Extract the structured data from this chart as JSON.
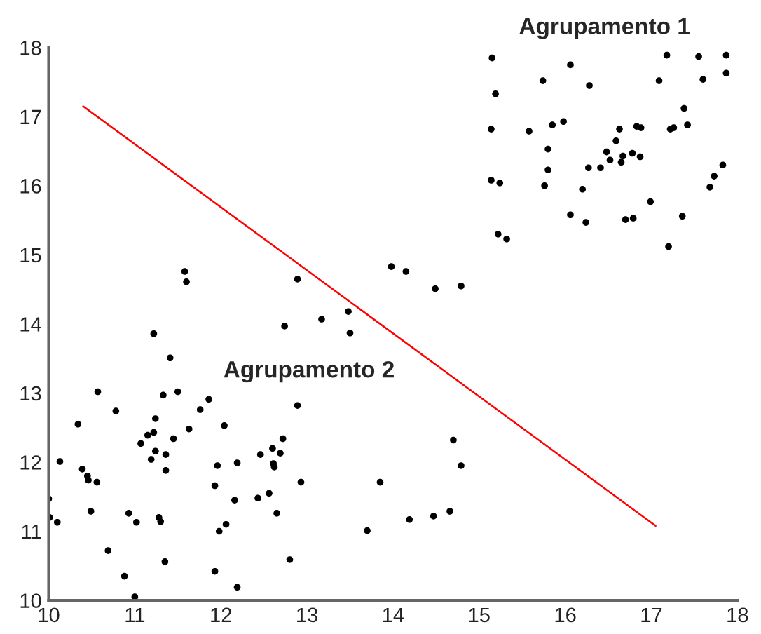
{
  "chart_data": {
    "type": "scatter",
    "xlim": [
      10,
      18
    ],
    "ylim": [
      10,
      18
    ],
    "xticks": [
      10,
      11,
      12,
      13,
      14,
      15,
      16,
      17,
      18
    ],
    "yticks": [
      10,
      11,
      12,
      13,
      14,
      15,
      16,
      17,
      18
    ],
    "grid": false,
    "legend": false,
    "annotations": [
      "Agrupamento 1",
      "Agrupamento 2"
    ],
    "series": [
      {
        "color": "#000000",
        "marker": "circle",
        "x": [
          11.58,
          11.6,
          11.22,
          11.41,
          10.57,
          11.5,
          11.33,
          11.86,
          10.78,
          11.76,
          10.34,
          11.24,
          12.04,
          11.63,
          11.22,
          11.15,
          11.07,
          11.45,
          11.24,
          11.36,
          11.19,
          10.13,
          11.36,
          11.96,
          12.19,
          10.39,
          10.45,
          10.46,
          10.56,
          11.93,
          10.0,
          10.01,
          10.1,
          10.49,
          10.93,
          11.02,
          11.28,
          11.3,
          12.16,
          11.98,
          12.06,
          10.69,
          10.88,
          11.35,
          11.93,
          11.0,
          12.19,
          12.89,
          13.98,
          14.15,
          14.49,
          14.79,
          13.48,
          13.17,
          12.74,
          13.5,
          12.89,
          12.72,
          12.46,
          12.6,
          12.69,
          12.61,
          12.62,
          12.93,
          12.43,
          12.56,
          12.65,
          12.8,
          13.85,
          13.7,
          14.19,
          14.47,
          14.66,
          14.7,
          14.79,
          15.15,
          17.18,
          17.55,
          17.87,
          16.06,
          15.74,
          16.28,
          17.09,
          17.6,
          17.87,
          15.19,
          17.38,
          15.14,
          15.58,
          15.85,
          15.98,
          16.63,
          16.83,
          16.88,
          17.22,
          17.26,
          17.42,
          16.59,
          15.8,
          16.48,
          16.52,
          16.67,
          16.65,
          16.78,
          16.87,
          15.8,
          16.27,
          16.41,
          17.83,
          17.73,
          15.14,
          15.24,
          15.76,
          16.2,
          17.68,
          16.99,
          16.06,
          16.24,
          16.7,
          16.79,
          17.36,
          15.22,
          15.32,
          17.2
        ],
        "values": [
          14.76,
          14.61,
          13.86,
          13.51,
          13.02,
          13.02,
          12.97,
          12.91,
          12.74,
          12.76,
          12.55,
          12.63,
          12.53,
          12.48,
          12.43,
          12.39,
          12.27,
          12.34,
          12.16,
          12.11,
          12.04,
          12.01,
          11.88,
          11.95,
          11.99,
          11.9,
          11.8,
          11.74,
          11.71,
          11.66,
          11.47,
          11.2,
          11.13,
          11.29,
          11.26,
          11.13,
          11.2,
          11.14,
          11.45,
          11.0,
          11.1,
          10.72,
          10.35,
          10.56,
          10.42,
          10.05,
          10.19,
          14.65,
          14.83,
          14.76,
          14.51,
          14.55,
          14.18,
          14.07,
          13.97,
          13.87,
          12.82,
          12.34,
          12.11,
          12.2,
          12.13,
          11.98,
          11.93,
          11.71,
          11.48,
          11.55,
          11.26,
          10.59,
          11.71,
          11.01,
          11.17,
          11.22,
          11.29,
          12.32,
          11.95,
          17.85,
          17.89,
          17.87,
          17.89,
          17.75,
          17.52,
          17.45,
          17.52,
          17.54,
          17.63,
          17.33,
          17.12,
          16.82,
          16.79,
          16.88,
          16.93,
          16.82,
          16.86,
          16.84,
          16.82,
          16.84,
          16.88,
          16.65,
          16.53,
          16.49,
          16.37,
          16.43,
          16.34,
          16.47,
          16.42,
          16.23,
          16.26,
          16.26,
          16.3,
          16.14,
          16.08,
          16.04,
          16.0,
          15.95,
          15.98,
          15.77,
          15.58,
          15.47,
          15.51,
          15.53,
          15.56,
          15.3,
          15.23,
          15.12
        ]
      },
      {
        "type": "line",
        "color": "#ff0000",
        "line_style": "solid",
        "x": [
          10.4,
          17.05
        ],
        "values": [
          17.15,
          11.08
        ]
      }
    ]
  }
}
